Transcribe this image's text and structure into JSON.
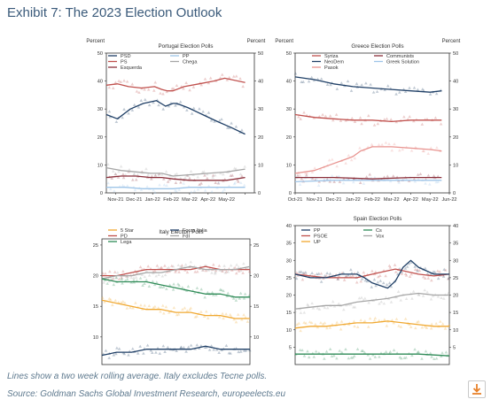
{
  "title": "Exhibit 7: The 2023 Election Outlook",
  "footnote": "Lines show a two week rolling average. Italy excludes Tecne polls.",
  "source": "Source: Goldman Sachs Global Investment Research, europeelects.eu",
  "chart_data": [
    {
      "type": "line",
      "title": "Portugal Election Polls",
      "ylabel_left": "Percent",
      "ylabel_right": "Percent",
      "ylim": [
        0,
        50
      ],
      "yticks": [
        0,
        10,
        20,
        30,
        40,
        50
      ],
      "xlim": [
        0,
        8
      ],
      "xticks": [
        0.5,
        1.5,
        2.5,
        3.5,
        4.5,
        5.5,
        6.5,
        7.5
      ],
      "xticklabels": [
        "Nov-21",
        "Dec-21",
        "Jan-22",
        "Feb-22",
        "Mar-22",
        "Apr-22",
        "May-22",
        ""
      ],
      "xticklabels_shown": [
        "Nov-21",
        "Dec-21",
        "Jan-22",
        "Feb-22",
        "Mar-22",
        "Apr-22",
        "May-22"
      ],
      "legend": [
        "PSD",
        "PS",
        "Esquerda",
        "PP",
        "Chega"
      ],
      "series": [
        {
          "name": "PSD",
          "color": "#1f3f66",
          "x": [
            0,
            0.6,
            1.3,
            2,
            2.7,
            3.2,
            3.6,
            3.8,
            4.4,
            5.2,
            6,
            6.7,
            7.5
          ],
          "values": [
            28,
            26.5,
            30,
            32,
            33,
            31,
            32,
            32,
            30.5,
            28,
            25.5,
            23.5,
            21
          ]
        },
        {
          "name": "PS",
          "color": "#c0504d",
          "x": [
            0,
            0.6,
            1.2,
            1.9,
            2.6,
            3,
            3.3,
            3.6,
            4.2,
            5,
            5.8,
            6.4,
            7.5
          ],
          "values": [
            38.5,
            39,
            38,
            37.5,
            38,
            37,
            36.5,
            36.5,
            38,
            39,
            40,
            41,
            39.5
          ]
        },
        {
          "name": "Esquerda",
          "color": "#8b2f3a",
          "x": [
            0,
            0.8,
            1.6,
            2.4,
            3,
            3.6,
            4.5,
            5.5,
            6.5,
            7.5
          ],
          "values": [
            5.5,
            6,
            6,
            5.5,
            5.5,
            5,
            4.5,
            4.5,
            4.5,
            5.5
          ]
        },
        {
          "name": "PP",
          "color": "#9fc5e8",
          "x": [
            0,
            1,
            2,
            3,
            3.6,
            4.5,
            5.5,
            6.5,
            7.5
          ],
          "values": [
            2,
            2,
            1.5,
            1.5,
            1.5,
            2,
            2,
            2,
            2
          ]
        },
        {
          "name": "Chega",
          "color": "#a6a6a6",
          "x": [
            0,
            0.8,
            1.6,
            2.4,
            3,
            3.6,
            4.5,
            5.5,
            6.5,
            7.5
          ],
          "values": [
            9,
            8,
            7.5,
            7,
            7,
            6,
            6.5,
            7,
            7.5,
            8.5
          ]
        }
      ]
    },
    {
      "type": "line",
      "title": "Greece Election Polls",
      "ylabel_left": "Percent",
      "ylabel_right": "Percent",
      "ylim": [
        0,
        50
      ],
      "yticks": [
        0,
        10,
        20,
        30,
        40,
        50
      ],
      "xlim": [
        0,
        8
      ],
      "xticks": [
        0,
        1,
        2,
        3,
        4,
        5,
        6,
        7,
        8
      ],
      "xticklabels": [
        "Oct-21",
        "Nov-21",
        "Dec-21",
        "Jan-22",
        "Feb-22",
        "Mar-22",
        "Apr-22",
        "May-22",
        "Jun-22"
      ],
      "legend": [
        "Syriza",
        "NeoDem",
        "Pasok",
        "Communists",
        "Greek Solution"
      ],
      "series": [
        {
          "name": "NeoDem",
          "color": "#1f3f66",
          "x": [
            0,
            1,
            2,
            3,
            4,
            5,
            6,
            7,
            7.6
          ],
          "values": [
            41.5,
            40.5,
            39,
            38,
            37.5,
            37,
            36.5,
            36,
            36.5
          ]
        },
        {
          "name": "Syriza",
          "color": "#c0504d",
          "x": [
            0,
            1,
            2,
            3,
            4,
            5,
            6,
            7,
            7.6
          ],
          "values": [
            28,
            27,
            26.5,
            26,
            26,
            25.5,
            26,
            26,
            26
          ]
        },
        {
          "name": "Pasok",
          "color": "#e8938f",
          "x": [
            0,
            1,
            2,
            2.6,
            3,
            3.4,
            4,
            5,
            6,
            7,
            7.6
          ],
          "values": [
            7,
            8,
            10.5,
            12,
            13,
            15,
            16.5,
            16.5,
            16,
            15.5,
            15
          ]
        },
        {
          "name": "Communists",
          "color": "#8b2f3a",
          "x": [
            0,
            2,
            4,
            6,
            7.6
          ],
          "values": [
            5.5,
            5.5,
            5,
            5.5,
            5.5
          ]
        },
        {
          "name": "Greek Solution",
          "color": "#9fc5e8",
          "x": [
            0,
            2,
            4,
            6,
            7.6
          ],
          "values": [
            4,
            4.5,
            4.5,
            4.5,
            4.5
          ]
        }
      ]
    },
    {
      "type": "line",
      "title": "Italy Election Polls",
      "ylabel_left": "",
      "ylabel_right": "",
      "ylim": [
        5.5,
        26
      ],
      "yticks": [
        10,
        15,
        20,
        25
      ],
      "xlim": [
        0,
        10
      ],
      "xticks": [],
      "xticklabels": [],
      "legend": [
        "5 Star",
        "PD",
        "Lega",
        "Forza Italia",
        "FdI"
      ],
      "series": [
        {
          "name": "PD",
          "color": "#c0504d",
          "x": [
            0,
            1,
            2,
            3,
            4,
            5,
            6,
            7,
            8,
            9,
            10
          ],
          "values": [
            20,
            20,
            20.5,
            21,
            21,
            21,
            21,
            21.5,
            21,
            21,
            21
          ]
        },
        {
          "name": "FdI",
          "color": "#a6a6a6",
          "x": [
            0,
            1,
            2,
            3,
            4,
            5,
            6,
            7,
            8,
            9,
            10
          ],
          "values": [
            19.5,
            20,
            20,
            20.5,
            20.5,
            21,
            21.5,
            21,
            21,
            21,
            21.5
          ]
        },
        {
          "name": "Lega",
          "color": "#2e8b57",
          "x": [
            0,
            1,
            2,
            3,
            4,
            5,
            6,
            7,
            8,
            9,
            10
          ],
          "values": [
            19.5,
            19,
            19,
            19,
            18.5,
            18,
            17.5,
            17,
            17,
            16.5,
            16.5
          ]
        },
        {
          "name": "5 Star",
          "color": "#f0a830",
          "x": [
            0,
            1,
            2,
            3,
            4,
            5,
            6,
            7,
            8,
            9,
            10
          ],
          "values": [
            16,
            15.5,
            15,
            14.5,
            14.5,
            14,
            14,
            13.5,
            13.5,
            13,
            13
          ]
        },
        {
          "name": "Forza Italia",
          "color": "#1f3f66",
          "x": [
            0,
            1,
            2,
            3,
            4,
            5,
            6,
            7,
            8,
            9,
            10
          ],
          "values": [
            7,
            7.5,
            7.5,
            8,
            8,
            8,
            8,
            8.5,
            8,
            8,
            8
          ]
        }
      ]
    },
    {
      "type": "line",
      "title": "Spain Election Polls",
      "ylabel_left": "",
      "ylabel_right": "",
      "ylim": [
        0,
        40
      ],
      "yticks": [
        5,
        10,
        15,
        20,
        25,
        30,
        35,
        40
      ],
      "xlim": [
        0,
        10
      ],
      "xticks": [],
      "xticklabels": [],
      "legend": [
        "PP",
        "PSOE",
        "UP",
        "Cs",
        "Vox"
      ],
      "series": [
        {
          "name": "PSOE",
          "color": "#c0504d",
          "x": [
            0,
            1,
            2,
            3,
            4,
            5,
            6,
            6.5,
            7,
            8,
            9,
            10
          ],
          "values": [
            26,
            25.5,
            25,
            25,
            25,
            26,
            27,
            27.5,
            27,
            26,
            25.5,
            26
          ]
        },
        {
          "name": "PP",
          "color": "#1f3f66",
          "x": [
            0,
            1,
            2,
            3,
            4,
            4.5,
            5,
            6,
            6.5,
            7,
            7.5,
            8,
            9,
            10
          ],
          "values": [
            26,
            25,
            25,
            26,
            26,
            25,
            23.5,
            22,
            24,
            28,
            30,
            28,
            26,
            26
          ]
        },
        {
          "name": "Vox",
          "color": "#a6a6a6",
          "x": [
            0,
            1,
            2,
            3,
            4,
            5,
            6,
            7,
            8,
            9,
            10
          ],
          "values": [
            16,
            16.5,
            17,
            17,
            18,
            18.5,
            19,
            20,
            20.5,
            20,
            20
          ]
        },
        {
          "name": "UP",
          "color": "#f0a830",
          "x": [
            0,
            1,
            2,
            3,
            4,
            5,
            6,
            7,
            8,
            9,
            10
          ],
          "values": [
            10.5,
            11,
            11,
            11.5,
            12,
            12,
            12.5,
            12,
            11.5,
            11,
            11
          ]
        },
        {
          "name": "Cs",
          "color": "#2e8b57",
          "x": [
            0,
            2,
            4,
            6,
            8,
            10
          ],
          "values": [
            3,
            3,
            3,
            3,
            3,
            2.5
          ]
        }
      ]
    }
  ]
}
